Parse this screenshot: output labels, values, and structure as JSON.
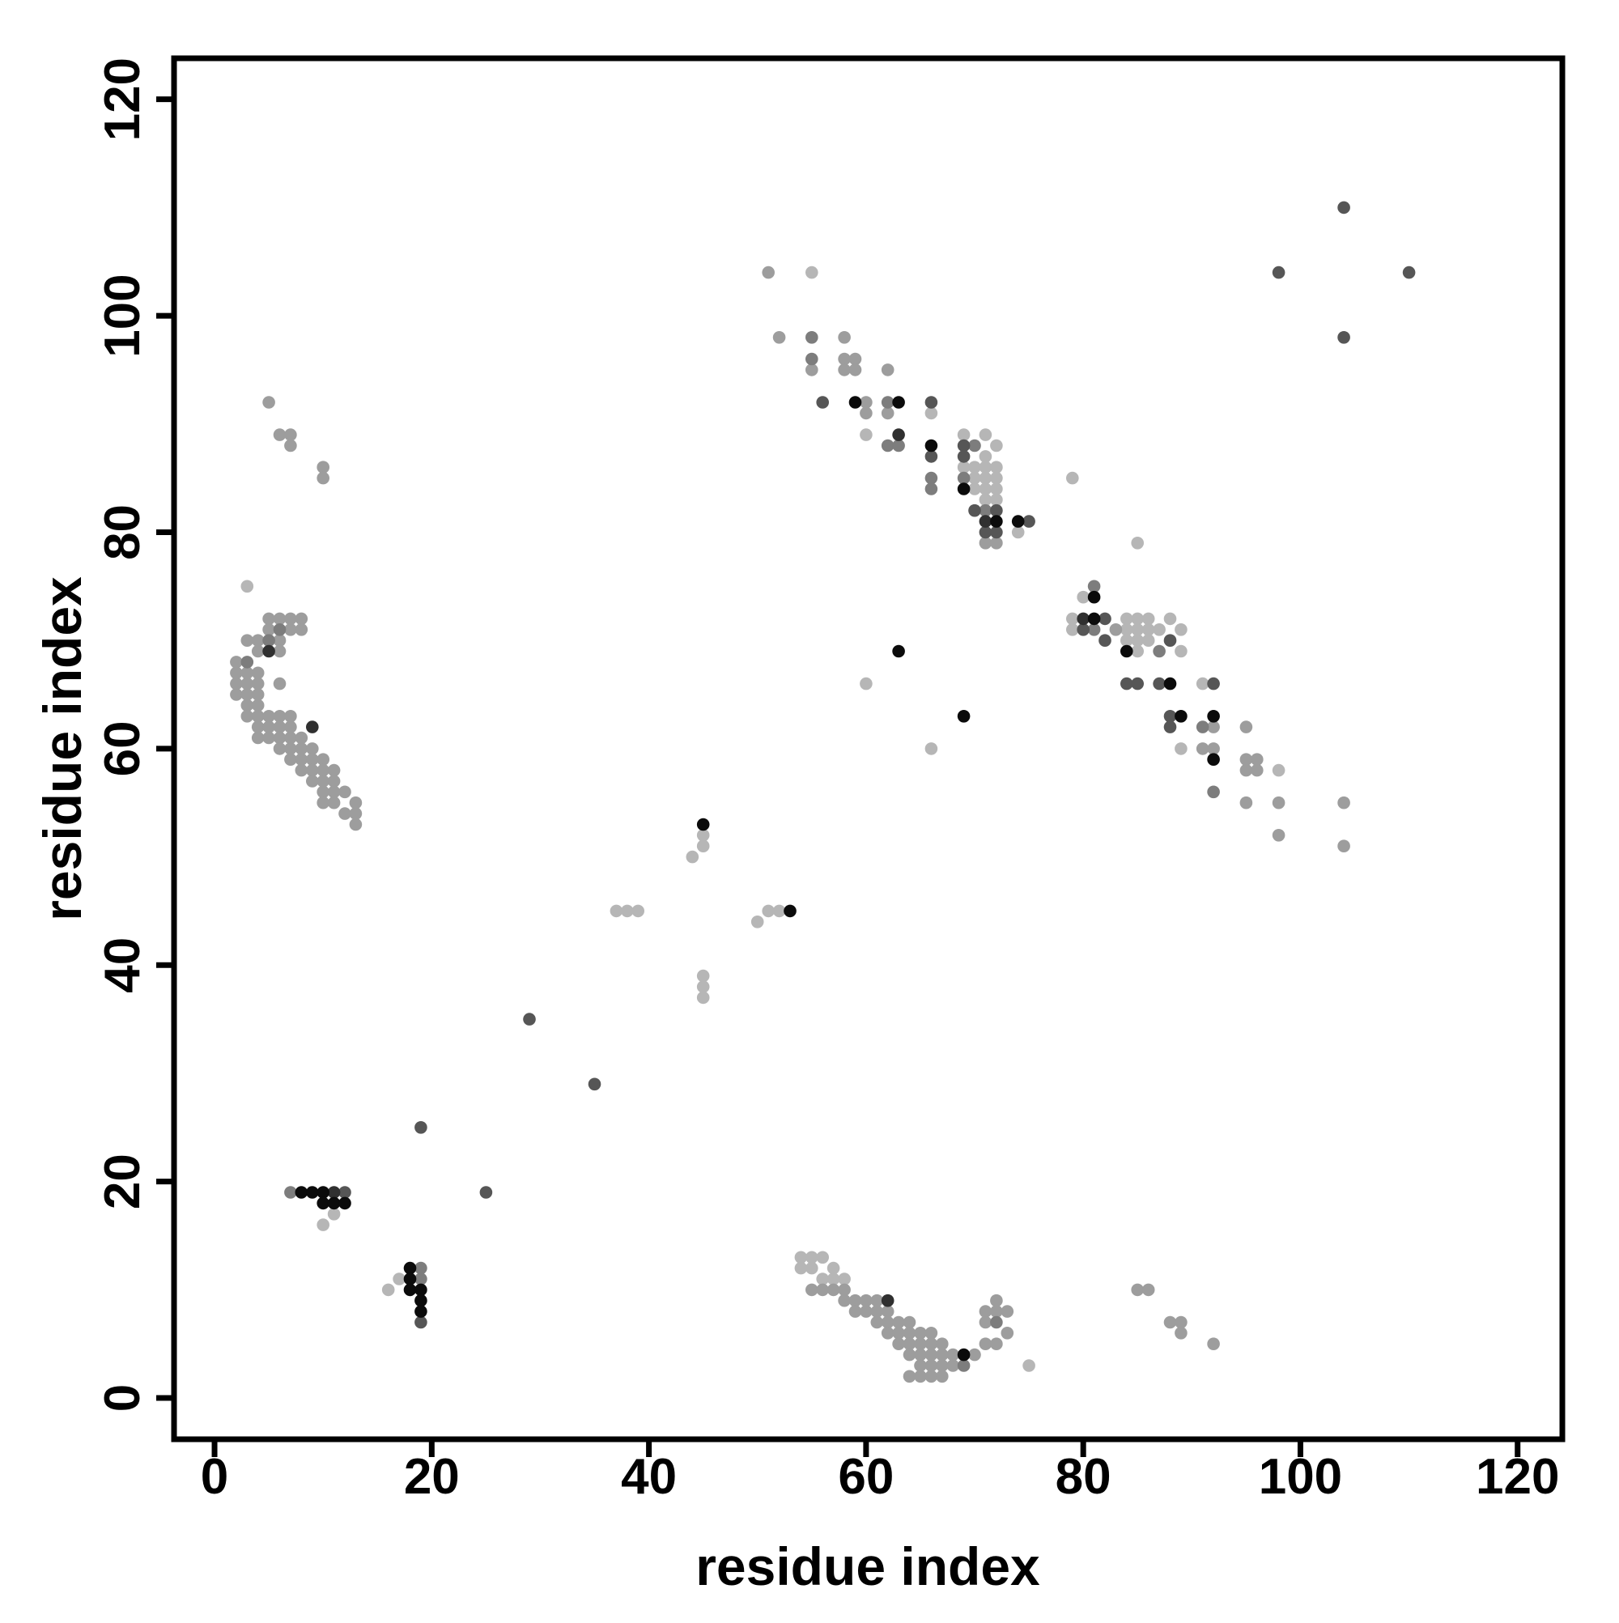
{
  "chart_data": {
    "type": "scatter",
    "title": "",
    "xlabel": "residue index",
    "ylabel": "residue index",
    "x_ticks": [
      0,
      20,
      40,
      60,
      80,
      100,
      120
    ],
    "y_ticks": [
      0,
      20,
      40,
      60,
      80,
      100,
      120
    ],
    "xlim": [
      -3.73,
      124.12
    ],
    "ylim": [
      -3.81,
      123.79
    ],
    "grid": false,
    "legend": "none",
    "marker": {
      "shape": "circle",
      "radius_px": 7.8
    },
    "shade_palette": {
      "K": "#0b0b0b",
      "D": "#303030",
      "D2": "#565656",
      "MD": "#7d7d7d",
      "M": "#9d9d9d",
      "L": "#b6b6b6"
    },
    "paint_order": [
      "L",
      "M",
      "MD",
      "D2",
      "D",
      "K"
    ],
    "points": [
      [
        7,
        19,
        "MD"
      ],
      [
        8,
        19,
        "K"
      ],
      [
        9,
        19,
        "K"
      ],
      [
        10,
        19,
        "K"
      ],
      [
        11,
        19,
        "D"
      ],
      [
        12,
        19,
        "D2"
      ],
      [
        10,
        18,
        "K"
      ],
      [
        11,
        18,
        "K"
      ],
      [
        12,
        18,
        "K"
      ],
      [
        11,
        17,
        "L"
      ],
      [
        10,
        16,
        "L"
      ],
      [
        18,
        12,
        "K"
      ],
      [
        19,
        12,
        "MD"
      ],
      [
        17,
        11,
        "L"
      ],
      [
        18,
        11,
        "K"
      ],
      [
        19,
        11,
        "MD"
      ],
      [
        16,
        10,
        "L"
      ],
      [
        18,
        10,
        "K"
      ],
      [
        19,
        10,
        "K"
      ],
      [
        19,
        9,
        "K"
      ],
      [
        19,
        8,
        "K"
      ],
      [
        19,
        7,
        "D2"
      ],
      [
        19,
        25,
        "D2"
      ],
      [
        25,
        19,
        "D2"
      ],
      [
        29,
        35,
        "D2"
      ],
      [
        35,
        29,
        "D2"
      ],
      [
        3,
        75,
        "L"
      ],
      [
        5,
        72,
        "M"
      ],
      [
        6,
        72,
        "M"
      ],
      [
        7,
        72,
        "M"
      ],
      [
        8,
        72,
        "M"
      ],
      [
        5,
        71,
        "M"
      ],
      [
        6,
        71,
        "MD"
      ],
      [
        7,
        71,
        "M"
      ],
      [
        8,
        71,
        "M"
      ],
      [
        3,
        70,
        "M"
      ],
      [
        4,
        70,
        "M"
      ],
      [
        5,
        70,
        "MD"
      ],
      [
        6,
        70,
        "M"
      ],
      [
        4,
        69,
        "M"
      ],
      [
        5,
        69,
        "D"
      ],
      [
        6,
        69,
        "M"
      ],
      [
        2,
        68,
        "M"
      ],
      [
        3,
        68,
        "MD"
      ],
      [
        2,
        67,
        "M"
      ],
      [
        3,
        67,
        "M"
      ],
      [
        4,
        67,
        "M"
      ],
      [
        2,
        66,
        "M"
      ],
      [
        3,
        66,
        "M"
      ],
      [
        4,
        66,
        "M"
      ],
      [
        6,
        66,
        "M"
      ],
      [
        2,
        65,
        "M"
      ],
      [
        3,
        65,
        "M"
      ],
      [
        4,
        65,
        "M"
      ],
      [
        3,
        64,
        "M"
      ],
      [
        4,
        64,
        "M"
      ],
      [
        3,
        63,
        "M"
      ],
      [
        4,
        63,
        "M"
      ],
      [
        5,
        63,
        "M"
      ],
      [
        6,
        63,
        "M"
      ],
      [
        7,
        63,
        "M"
      ],
      [
        4,
        62,
        "M"
      ],
      [
        5,
        62,
        "M"
      ],
      [
        6,
        62,
        "M"
      ],
      [
        7,
        62,
        "M"
      ],
      [
        9,
        62,
        "D"
      ],
      [
        4,
        61,
        "M"
      ],
      [
        5,
        61,
        "M"
      ],
      [
        6,
        61,
        "M"
      ],
      [
        7,
        61,
        "M"
      ],
      [
        8,
        61,
        "M"
      ],
      [
        6,
        60,
        "M"
      ],
      [
        7,
        60,
        "M"
      ],
      [
        8,
        60,
        "M"
      ],
      [
        9,
        60,
        "M"
      ],
      [
        7,
        59,
        "M"
      ],
      [
        8,
        59,
        "M"
      ],
      [
        9,
        59,
        "M"
      ],
      [
        10,
        59,
        "M"
      ],
      [
        8,
        58,
        "M"
      ],
      [
        9,
        58,
        "M"
      ],
      [
        10,
        58,
        "M"
      ],
      [
        11,
        58,
        "M"
      ],
      [
        9,
        57,
        "M"
      ],
      [
        10,
        57,
        "M"
      ],
      [
        11,
        57,
        "M"
      ],
      [
        10,
        56,
        "M"
      ],
      [
        11,
        56,
        "M"
      ],
      [
        12,
        56,
        "M"
      ],
      [
        10,
        55,
        "M"
      ],
      [
        11,
        55,
        "M"
      ],
      [
        13,
        55,
        "M"
      ],
      [
        12,
        54,
        "M"
      ],
      [
        13,
        54,
        "M"
      ],
      [
        13,
        53,
        "M"
      ],
      [
        5,
        92,
        "M"
      ],
      [
        6,
        89,
        "M"
      ],
      [
        7,
        89,
        "M"
      ],
      [
        7,
        88,
        "M"
      ],
      [
        10,
        86,
        "M"
      ],
      [
        10,
        85,
        "M"
      ],
      [
        45,
        53,
        "K"
      ],
      [
        45,
        52,
        "L"
      ],
      [
        45,
        51,
        "L"
      ],
      [
        44,
        50,
        "L"
      ],
      [
        37,
        45,
        "L"
      ],
      [
        38,
        45,
        "L"
      ],
      [
        39,
        45,
        "L"
      ],
      [
        50,
        44,
        "L"
      ],
      [
        51,
        45,
        "L"
      ],
      [
        52,
        45,
        "L"
      ],
      [
        53,
        45,
        "K"
      ],
      [
        45,
        39,
        "L"
      ],
      [
        45,
        38,
        "L"
      ],
      [
        45,
        37,
        "L"
      ],
      [
        54,
        13,
        "L"
      ],
      [
        55,
        13,
        "L"
      ],
      [
        56,
        13,
        "L"
      ],
      [
        54,
        12,
        "L"
      ],
      [
        55,
        12,
        "L"
      ],
      [
        57,
        12,
        "L"
      ],
      [
        56,
        11,
        "L"
      ],
      [
        57,
        11,
        "L"
      ],
      [
        58,
        11,
        "L"
      ],
      [
        55,
        10,
        "M"
      ],
      [
        56,
        10,
        "M"
      ],
      [
        57,
        10,
        "M"
      ],
      [
        58,
        10,
        "M"
      ],
      [
        58,
        9,
        "M"
      ],
      [
        59,
        9,
        "M"
      ],
      [
        60,
        9,
        "M"
      ],
      [
        61,
        9,
        "M"
      ],
      [
        62,
        9,
        "D"
      ],
      [
        59,
        8,
        "M"
      ],
      [
        60,
        8,
        "M"
      ],
      [
        61,
        8,
        "M"
      ],
      [
        62,
        8,
        "M"
      ],
      [
        61,
        7,
        "M"
      ],
      [
        62,
        7,
        "M"
      ],
      [
        63,
        7,
        "M"
      ],
      [
        64,
        7,
        "M"
      ],
      [
        62,
        6,
        "M"
      ],
      [
        63,
        6,
        "M"
      ],
      [
        64,
        6,
        "M"
      ],
      [
        65,
        6,
        "M"
      ],
      [
        66,
        6,
        "M"
      ],
      [
        63,
        5,
        "M"
      ],
      [
        64,
        5,
        "M"
      ],
      [
        65,
        5,
        "M"
      ],
      [
        66,
        5,
        "M"
      ],
      [
        67,
        5,
        "M"
      ],
      [
        64,
        4,
        "M"
      ],
      [
        65,
        4,
        "M"
      ],
      [
        66,
        4,
        "M"
      ],
      [
        67,
        4,
        "M"
      ],
      [
        68,
        4,
        "M"
      ],
      [
        69,
        4,
        "K"
      ],
      [
        65,
        3,
        "M"
      ],
      [
        66,
        3,
        "M"
      ],
      [
        67,
        3,
        "M"
      ],
      [
        68,
        3,
        "M"
      ],
      [
        69,
        3,
        "MD"
      ],
      [
        64,
        2,
        "M"
      ],
      [
        65,
        2,
        "M"
      ],
      [
        66,
        2,
        "M"
      ],
      [
        67,
        2,
        "M"
      ],
      [
        72,
        9,
        "M"
      ],
      [
        71,
        8,
        "M"
      ],
      [
        72,
        8,
        "M"
      ],
      [
        73,
        8,
        "M"
      ],
      [
        71,
        7,
        "M"
      ],
      [
        72,
        7,
        "MD"
      ],
      [
        73,
        6,
        "M"
      ],
      [
        71,
        5,
        "M"
      ],
      [
        72,
        5,
        "M"
      ],
      [
        70,
        4,
        "M"
      ],
      [
        75,
        3,
        "L"
      ],
      [
        85,
        10,
        "M"
      ],
      [
        86,
        10,
        "M"
      ],
      [
        88,
        7,
        "M"
      ],
      [
        89,
        7,
        "M"
      ],
      [
        89,
        6,
        "M"
      ],
      [
        92,
        5,
        "M"
      ],
      [
        51,
        104,
        "M"
      ],
      [
        55,
        104,
        "L"
      ],
      [
        52,
        98,
        "M"
      ],
      [
        55,
        98,
        "MD"
      ],
      [
        58,
        98,
        "M"
      ],
      [
        55,
        96,
        "MD"
      ],
      [
        58,
        96,
        "M"
      ],
      [
        59,
        96,
        "M"
      ],
      [
        55,
        95,
        "M"
      ],
      [
        58,
        95,
        "M"
      ],
      [
        59,
        95,
        "M"
      ],
      [
        62,
        95,
        "M"
      ],
      [
        56,
        92,
        "D2"
      ],
      [
        59,
        92,
        "K"
      ],
      [
        60,
        92,
        "M"
      ],
      [
        62,
        92,
        "MD"
      ],
      [
        63,
        92,
        "K"
      ],
      [
        66,
        92,
        "D2"
      ],
      [
        60,
        91,
        "M"
      ],
      [
        62,
        91,
        "M"
      ],
      [
        66,
        91,
        "L"
      ],
      [
        60,
        89,
        "L"
      ],
      [
        63,
        89,
        "D"
      ],
      [
        69,
        89,
        "L"
      ],
      [
        71,
        89,
        "L"
      ],
      [
        62,
        88,
        "MD"
      ],
      [
        63,
        88,
        "MD"
      ],
      [
        66,
        88,
        "K"
      ],
      [
        69,
        88,
        "D2"
      ],
      [
        70,
        88,
        "MD"
      ],
      [
        72,
        88,
        "L"
      ],
      [
        66,
        87,
        "D2"
      ],
      [
        69,
        87,
        "D2"
      ],
      [
        71,
        87,
        "L"
      ],
      [
        69,
        86,
        "L"
      ],
      [
        70,
        86,
        "L"
      ],
      [
        71,
        86,
        "L"
      ],
      [
        72,
        86,
        "L"
      ],
      [
        66,
        85,
        "MD"
      ],
      [
        69,
        85,
        "MD"
      ],
      [
        70,
        85,
        "L"
      ],
      [
        71,
        85,
        "L"
      ],
      [
        72,
        85,
        "L"
      ],
      [
        66,
        84,
        "MD"
      ],
      [
        69,
        84,
        "K"
      ],
      [
        70,
        84,
        "L"
      ],
      [
        71,
        84,
        "L"
      ],
      [
        72,
        84,
        "L"
      ],
      [
        71,
        83,
        "L"
      ],
      [
        72,
        83,
        "L"
      ],
      [
        70,
        82,
        "D2"
      ],
      [
        71,
        82,
        "MD"
      ],
      [
        72,
        82,
        "D2"
      ],
      [
        71,
        81,
        "D"
      ],
      [
        72,
        81,
        "K"
      ],
      [
        74,
        81,
        "K"
      ],
      [
        75,
        81,
        "D2"
      ],
      [
        71,
        80,
        "D2"
      ],
      [
        72,
        80,
        "D2"
      ],
      [
        74,
        80,
        "L"
      ],
      [
        71,
        79,
        "M"
      ],
      [
        72,
        79,
        "M"
      ],
      [
        79,
        85,
        "L"
      ],
      [
        85,
        79,
        "L"
      ],
      [
        63,
        69,
        "K"
      ],
      [
        60,
        66,
        "L"
      ],
      [
        69,
        63,
        "K"
      ],
      [
        66,
        60,
        "L"
      ],
      [
        81,
        75,
        "MD"
      ],
      [
        80,
        74,
        "L"
      ],
      [
        81,
        74,
        "K"
      ],
      [
        79,
        72,
        "L"
      ],
      [
        80,
        72,
        "D"
      ],
      [
        81,
        72,
        "K"
      ],
      [
        82,
        72,
        "D2"
      ],
      [
        84,
        72,
        "L"
      ],
      [
        85,
        72,
        "L"
      ],
      [
        86,
        72,
        "L"
      ],
      [
        88,
        72,
        "L"
      ],
      [
        79,
        71,
        "L"
      ],
      [
        80,
        71,
        "D2"
      ],
      [
        81,
        71,
        "MD"
      ],
      [
        83,
        71,
        "M"
      ],
      [
        84,
        71,
        "L"
      ],
      [
        85,
        71,
        "L"
      ],
      [
        86,
        71,
        "L"
      ],
      [
        87,
        71,
        "L"
      ],
      [
        89,
        71,
        "L"
      ],
      [
        82,
        70,
        "D2"
      ],
      [
        84,
        70,
        "L"
      ],
      [
        85,
        70,
        "L"
      ],
      [
        86,
        70,
        "L"
      ],
      [
        88,
        70,
        "D2"
      ],
      [
        84,
        69,
        "K"
      ],
      [
        85,
        69,
        "L"
      ],
      [
        87,
        69,
        "MD"
      ],
      [
        89,
        69,
        "L"
      ],
      [
        84,
        66,
        "D2"
      ],
      [
        85,
        66,
        "D2"
      ],
      [
        87,
        66,
        "D2"
      ],
      [
        88,
        66,
        "K"
      ],
      [
        91,
        66,
        "L"
      ],
      [
        92,
        66,
        "D2"
      ],
      [
        88,
        63,
        "D2"
      ],
      [
        89,
        63,
        "K"
      ],
      [
        92,
        63,
        "K"
      ],
      [
        88,
        62,
        "D2"
      ],
      [
        91,
        62,
        "MD"
      ],
      [
        92,
        62,
        "M"
      ],
      [
        95,
        62,
        "M"
      ],
      [
        89,
        60,
        "L"
      ],
      [
        91,
        60,
        "M"
      ],
      [
        92,
        60,
        "M"
      ],
      [
        92,
        59,
        "K"
      ],
      [
        95,
        59,
        "M"
      ],
      [
        96,
        59,
        "M"
      ],
      [
        95,
        58,
        "M"
      ],
      [
        96,
        58,
        "M"
      ],
      [
        98,
        58,
        "L"
      ],
      [
        92,
        56,
        "MD"
      ],
      [
        95,
        55,
        "M"
      ],
      [
        98,
        55,
        "M"
      ],
      [
        104,
        55,
        "M"
      ],
      [
        98,
        52,
        "M"
      ],
      [
        104,
        51,
        "M"
      ],
      [
        98,
        104,
        "D2"
      ],
      [
        104,
        110,
        "D2"
      ],
      [
        110,
        104,
        "D2"
      ],
      [
        104,
        98,
        "D2"
      ]
    ]
  }
}
